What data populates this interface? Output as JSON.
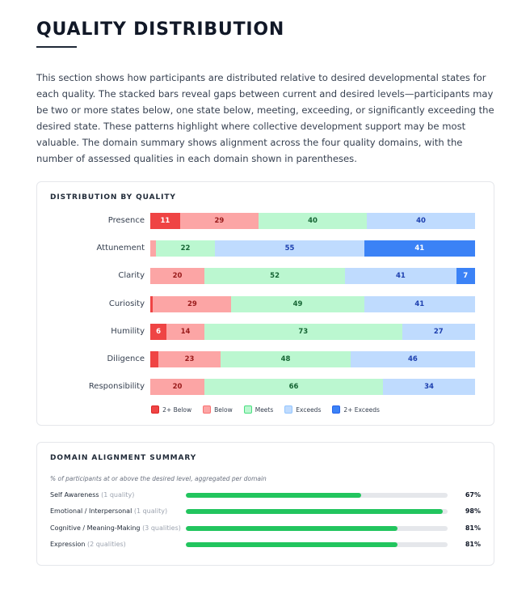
{
  "header": {
    "title": "QUALITY DISTRIBUTION",
    "intro": "This section shows how participants are distributed relative to desired developmental states for each quality. The stacked bars reveal gaps between current and desired levels—participants may be two or more states below, one state below, meeting, exceeding, or significantly exceeding the desired state. These patterns highlight where collective development support may be most valuable. The domain summary shows alignment across the four quality domains, with the number of assessed qualities in each domain shown in parentheses."
  },
  "distribution_card": {
    "title": "DISTRIBUTION BY QUALITY"
  },
  "domain_card": {
    "title": "DOMAIN ALIGNMENT SUMMARY",
    "subtitle": "% of participants at or above the desired level, aggregated per domain"
  },
  "colors": {
    "2plus_below": "#ef4444",
    "below": "#fca5a5",
    "meets": "#bbf7d0",
    "exceeds": "#bfdbfe",
    "2plus_exceeds": "#3b82f6",
    "domain_bar": "#22c55e"
  },
  "chart_data": [
    {
      "type": "bar",
      "orientation": "horizontal",
      "stacked": true,
      "categories": [
        "Presence",
        "Attunement",
        "Clarity",
        "Curiosity",
        "Humility",
        "Diligence",
        "Responsibility"
      ],
      "series": [
        {
          "name": "2+ Below",
          "values": [
            11,
            0,
            0,
            1,
            6,
            3,
            0
          ]
        },
        {
          "name": "Below",
          "values": [
            29,
            2,
            20,
            29,
            14,
            23,
            20
          ]
        },
        {
          "name": "Meets",
          "values": [
            40,
            22,
            52,
            49,
            73,
            48,
            66
          ]
        },
        {
          "name": "Exceeds",
          "values": [
            40,
            55,
            41,
            41,
            27,
            46,
            34
          ]
        },
        {
          "name": "2+ Exceeds",
          "values": [
            0,
            41,
            7,
            0,
            0,
            0,
            0
          ]
        }
      ],
      "legend": "bottom"
    },
    {
      "type": "bar",
      "orientation": "horizontal",
      "categories": [
        "Self Awareness",
        "Emotional / Interpersonal",
        "Cognitive / Meaning-Making",
        "Expression"
      ],
      "counts": [
        "(1 quality)",
        "(1 quality)",
        "(3 qualities)",
        "(2 qualities)"
      ],
      "values": [
        67,
        98,
        81,
        81
      ],
      "labels": [
        "67%",
        "98%",
        "81%",
        "81%"
      ],
      "xlim": [
        0,
        100
      ]
    }
  ]
}
